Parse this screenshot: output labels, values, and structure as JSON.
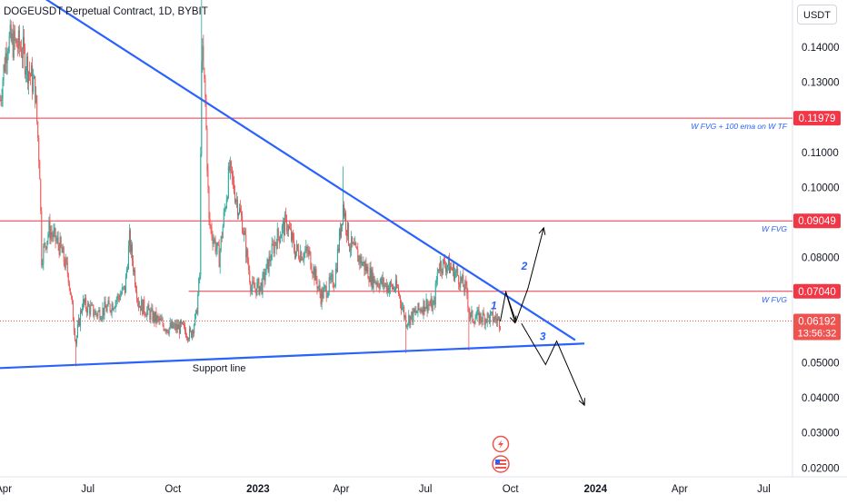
{
  "header": {
    "symbol_title": "DOGEUSDT Perpetual Contract, 1D, BYBIT",
    "currency_label": "USDT"
  },
  "colors": {
    "candle_up": "#26a69a",
    "candle_down": "#ef5350",
    "trendline": "#2962ff",
    "level_line": "#f23645",
    "price_line": "#ef5350",
    "axis_text": "#131722",
    "annotation_blue": "#2962ff",
    "wave_arrow": "#000000"
  },
  "chart_data": {
    "type": "candlestick",
    "x_axis": {
      "range": [
        "2022-03-28",
        "2024-08-01"
      ],
      "tick_labels": [
        {
          "date": "2022-04-01",
          "label": "Apr",
          "bold": false
        },
        {
          "date": "2022-07-01",
          "label": "Jul",
          "bold": false
        },
        {
          "date": "2022-10-01",
          "label": "Oct",
          "bold": false
        },
        {
          "date": "2023-01-01",
          "label": "2023",
          "bold": true
        },
        {
          "date": "2023-04-01",
          "label": "Apr",
          "bold": false
        },
        {
          "date": "2023-07-01",
          "label": "Jul",
          "bold": false
        },
        {
          "date": "2023-10-01",
          "label": "Oct",
          "bold": false
        },
        {
          "date": "2024-01-01",
          "label": "2024",
          "bold": true
        },
        {
          "date": "2024-04-01",
          "label": "Apr",
          "bold": false
        },
        {
          "date": "2024-07-01",
          "label": "Jul",
          "bold": false
        }
      ]
    },
    "y_axis": {
      "range": [
        0.0175,
        0.1535
      ],
      "position": "right",
      "tick_labels": [
        "0.02000",
        "0.03000",
        "0.04000",
        "0.05000",
        "0.06000",
        "0.08000",
        "0.09000",
        "0.10000",
        "0.11000",
        "0.12000",
        "0.13000",
        "0.14000"
      ],
      "tick_values": [
        0.02,
        0.03,
        0.04,
        0.05,
        0.06,
        0.08,
        0.09,
        0.1,
        0.11,
        0.12,
        0.13,
        0.14
      ]
    },
    "price_anchors": [
      [
        "2022-03-28",
        0.125
      ],
      [
        "2022-04-05",
        0.142
      ],
      [
        "2022-04-20",
        0.14
      ],
      [
        "2022-05-05",
        0.128
      ],
      [
        "2022-05-10",
        0.105
      ],
      [
        "2022-05-12",
        0.08
      ],
      [
        "2022-05-20",
        0.088
      ],
      [
        "2022-06-01",
        0.083
      ],
      [
        "2022-06-10",
        0.075
      ],
      [
        "2022-06-18",
        0.056
      ],
      [
        "2022-06-25",
        0.067
      ],
      [
        "2022-07-10",
        0.064
      ],
      [
        "2022-07-25",
        0.066
      ],
      [
        "2022-08-10",
        0.071
      ],
      [
        "2022-08-15",
        0.085
      ],
      [
        "2022-08-25",
        0.067
      ],
      [
        "2022-09-10",
        0.063
      ],
      [
        "2022-09-25",
        0.06
      ],
      [
        "2022-10-10",
        0.06
      ],
      [
        "2022-10-20",
        0.058
      ],
      [
        "2022-10-26",
        0.063
      ],
      [
        "2022-10-30",
        0.075
      ],
      [
        "2022-11-01",
        0.14
      ],
      [
        "2022-11-05",
        0.125
      ],
      [
        "2022-11-09",
        0.09
      ],
      [
        "2022-11-20",
        0.08
      ],
      [
        "2022-12-01",
        0.105
      ],
      [
        "2022-12-15",
        0.09
      ],
      [
        "2022-12-25",
        0.071
      ],
      [
        "2023-01-05",
        0.072
      ],
      [
        "2023-01-20",
        0.085
      ],
      [
        "2023-02-01",
        0.09
      ],
      [
        "2023-02-10",
        0.082
      ],
      [
        "2023-02-25",
        0.081
      ],
      [
        "2023-03-10",
        0.069
      ],
      [
        "2023-03-25",
        0.074
      ],
      [
        "2023-04-03",
        0.095
      ],
      [
        "2023-04-10",
        0.084
      ],
      [
        "2023-04-20",
        0.08
      ],
      [
        "2023-05-05",
        0.074
      ],
      [
        "2023-05-20",
        0.072
      ],
      [
        "2023-06-01",
        0.071
      ],
      [
        "2023-06-10",
        0.062
      ],
      [
        "2023-06-20",
        0.064
      ],
      [
        "2023-07-01",
        0.067
      ],
      [
        "2023-07-10",
        0.066
      ],
      [
        "2023-07-15",
        0.078
      ],
      [
        "2023-07-25",
        0.078
      ],
      [
        "2023-08-05",
        0.075
      ],
      [
        "2023-08-15",
        0.07
      ],
      [
        "2023-08-18",
        0.063
      ],
      [
        "2023-08-25",
        0.063
      ],
      [
        "2023-09-05",
        0.063
      ],
      [
        "2023-09-15",
        0.0625
      ],
      [
        "2023-09-20",
        0.0619
      ]
    ],
    "spikes": [
      {
        "date": "2022-11-01",
        "high": 0.155
      },
      {
        "date": "2023-04-03",
        "high": 0.106
      },
      {
        "date": "2022-06-18",
        "low": 0.049
      },
      {
        "date": "2023-06-10",
        "low": 0.0528
      },
      {
        "date": "2023-08-17",
        "low": 0.0535
      }
    ],
    "horizontal_levels": [
      {
        "price": 0.11979,
        "label": "W FVG + 100 ema on W TF",
        "price_label": "0.11979",
        "from": "2022-03-28"
      },
      {
        "price": 0.09049,
        "label": "W FVG",
        "price_label": "0.09049",
        "from": "2022-03-28"
      },
      {
        "price": 0.0704,
        "label": "W FVG",
        "price_label": "0.07040",
        "from": "2022-10-18"
      }
    ],
    "current_price": {
      "price": 0.06192,
      "price_label": "0.06192",
      "countdown": "13:56:32"
    },
    "trendlines": [
      {
        "name": "resistance",
        "p1": [
          "2022-05-15",
          0.154
        ],
        "p2": [
          "2023-12-10",
          0.0565
        ]
      },
      {
        "name": "support",
        "p1": [
          "2022-03-28",
          0.0485
        ],
        "p2": [
          "2023-12-20",
          0.0555
        ],
        "label": "Support line"
      }
    ],
    "wave_paths": [
      {
        "name": "bullish-scenario",
        "points": [
          [
            "2023-09-20",
            0.0618
          ],
          [
            "2023-09-26",
            0.0702
          ],
          [
            "2023-10-07",
            0.0618
          ],
          [
            "2023-10-20",
            0.0713
          ],
          [
            "2023-11-06",
            0.0885
          ]
        ],
        "labels": [
          {
            "text": "1",
            "at": [
              "2023-09-13",
              0.0653
            ]
          },
          {
            "text": "2",
            "at": [
              "2023-10-16",
              0.0766
            ]
          }
        ]
      },
      {
        "name": "bearish-scenario",
        "points": [
          [
            "2023-09-26",
            0.0702
          ],
          [
            "2023-10-06",
            0.0614
          ]
        ],
        "labels": []
      },
      {
        "name": "breakdown-scenario",
        "points": [
          [
            "2023-10-13",
            0.0612
          ],
          [
            "2023-11-08",
            0.0495
          ],
          [
            "2023-11-20",
            0.0562
          ],
          [
            "2023-12-20",
            0.0379
          ]
        ],
        "labels": [
          {
            "text": "3",
            "at": [
              "2023-11-05",
              0.0565
            ]
          }
        ]
      }
    ]
  }
}
